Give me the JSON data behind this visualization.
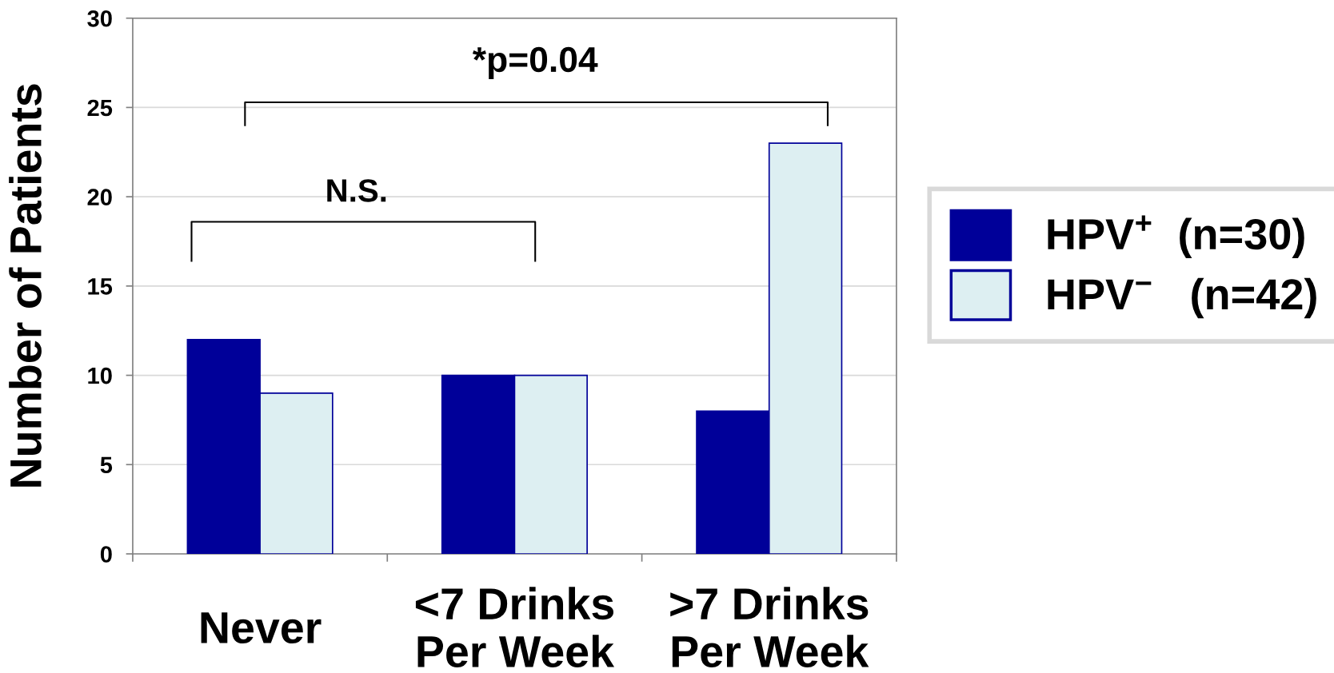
{
  "chart_data": {
    "type": "bar",
    "ylabel": "Number of Patients",
    "categories": [
      "Never",
      "<7 Drinks\nPer Week",
      ">7 Drinks\nPer Week"
    ],
    "series": [
      {
        "name": "HPV$^{+}$  (n=30)",
        "color": "#000099",
        "values": [
          12,
          10,
          8
        ]
      },
      {
        "name": "HPV$^{−}$   (n=42)",
        "color": "#ddeff2",
        "values": [
          9,
          10,
          23
        ]
      }
    ],
    "ylim": [
      0,
      30
    ],
    "yticks": [
      0,
      5,
      10,
      15,
      20,
      25,
      30
    ],
    "grid": "y",
    "legend": "right",
    "annotations": [
      "N.S.",
      "*p=0.04"
    ]
  }
}
